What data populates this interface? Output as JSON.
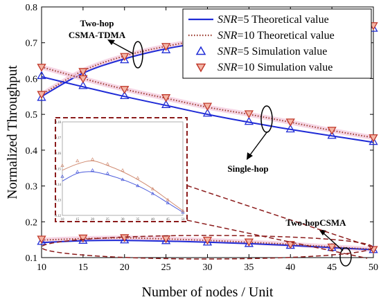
{
  "chart_data": {
    "type": "line",
    "xlabel": "Number of nodes / Unit",
    "ylabel": "Normalized Throughput",
    "xlim": [
      10,
      50
    ],
    "ylim": [
      0.1,
      0.8
    ],
    "xticks": [
      10,
      15,
      20,
      25,
      30,
      35,
      40,
      45,
      50
    ],
    "yticks": [
      0.1,
      0.2,
      0.3,
      0.4,
      0.5,
      0.6,
      0.7,
      0.8
    ],
    "grid": false,
    "legend_position": "top-right",
    "legend": [
      {
        "snr": "SNR",
        "rest": "=5 Theoretical value",
        "style": "solid",
        "color": "#1f2bd6"
      },
      {
        "snr": "SNR",
        "rest": "=10 Theoretical value",
        "style": "dotted",
        "color": "#9a3a2c"
      },
      {
        "snr": "SNR",
        "rest": "=5 Simulation value",
        "style": "triangle-up",
        "color": "#1f2bd6"
      },
      {
        "snr": "SNR",
        "rest": "=10 Simulation value",
        "style": "triangle-down",
        "color": "#c0392b"
      }
    ],
    "x": [
      10,
      15,
      20,
      25,
      30,
      35,
      40,
      45,
      50
    ],
    "groups": [
      {
        "annotation": [
          "Two-hop",
          "CSMA-TDMA"
        ],
        "theory_snr5": [
          0.55,
          0.615,
          0.655,
          0.683,
          0.703,
          0.718,
          0.73,
          0.737,
          0.743
        ],
        "theory_snr10": [
          0.555,
          0.622,
          0.663,
          0.69,
          0.71,
          0.724,
          0.735,
          0.742,
          0.748
        ],
        "sim_snr5": [
          0.547,
          0.612,
          0.652,
          0.68,
          0.7,
          0.716,
          0.728,
          0.735,
          0.74
        ],
        "sim_snr10": [
          0.556,
          0.62,
          0.662,
          0.69,
          0.71,
          0.724,
          0.735,
          0.742,
          0.748
        ]
      },
      {
        "annotation": [
          "Single-hop"
        ],
        "theory_snr5": [
          0.605,
          0.577,
          0.55,
          0.525,
          0.5,
          0.478,
          0.458,
          0.44,
          0.422
        ],
        "theory_snr10": [
          0.632,
          0.6,
          0.57,
          0.545,
          0.52,
          0.5,
          0.478,
          0.455,
          0.435
        ],
        "sim_snr5": [
          0.608,
          0.58,
          0.552,
          0.527,
          0.503,
          0.48,
          0.459,
          0.441,
          0.424
        ],
        "sim_snr10": [
          0.632,
          0.6,
          0.57,
          0.547,
          0.523,
          0.502,
          0.479,
          0.456,
          0.435
        ]
      },
      {
        "annotation": [
          "Two-hopCSMA"
        ],
        "theory_snr5": [
          0.142,
          0.147,
          0.148,
          0.146,
          0.143,
          0.139,
          0.134,
          0.128,
          0.122
        ],
        "theory_snr10": [
          0.149,
          0.153,
          0.155,
          0.152,
          0.148,
          0.143,
          0.137,
          0.13,
          0.123
        ],
        "sim_snr5": [
          0.145,
          0.148,
          0.149,
          0.147,
          0.143,
          0.139,
          0.134,
          0.128,
          0.122
        ],
        "sim_snr10": [
          0.152,
          0.155,
          0.156,
          0.153,
          0.149,
          0.144,
          0.137,
          0.13,
          0.123
        ]
      }
    ],
    "inset": {
      "xlim": [
        10,
        50
      ],
      "ylim": [
        0.12,
        0.18
      ],
      "xticks": [
        "10",
        "15",
        "20",
        "25",
        "30",
        "35",
        "40",
        "45",
        "50"
      ],
      "yticks": [
        "0.12",
        "0.13",
        "0.14",
        "0.15",
        "0.16",
        "0.17",
        "0.18"
      ]
    }
  }
}
